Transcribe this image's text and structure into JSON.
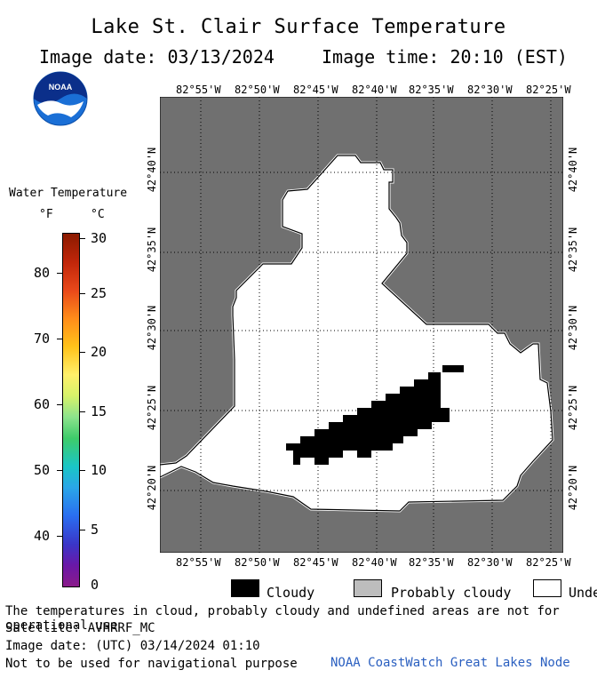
{
  "title": "Lake St. Clair Surface Temperature",
  "image_date_line": "Image date: 03/13/2024",
  "image_time_line": "Image time: 20:10 (EST)",
  "logo_text": "NOAA",
  "colorbar": {
    "label": "Water Temperature",
    "unit_f": "°F",
    "unit_c": "°C",
    "ticks_f": [
      "80",
      "70",
      "60",
      "50",
      "40"
    ],
    "ticks_c": [
      "30",
      "25",
      "20",
      "15",
      "10",
      "5",
      "0"
    ]
  },
  "map": {
    "longitudes": [
      "82°55'W",
      "82°50'W",
      "82°45'W",
      "82°40'W",
      "82°35'W",
      "82°30'W",
      "82°25'W"
    ],
    "latitudes": [
      "42°40'N",
      "42°35'N",
      "42°30'N",
      "42°25'N",
      "42°20'N"
    ],
    "colors": {
      "land": "#707070",
      "water_undefined": "#ffffff",
      "cloud": "#000000",
      "grid": "#000000"
    }
  },
  "legend": {
    "cloudy": "Cloudy",
    "probably_cloudy": "Probably cloudy",
    "undefined": "Undefined"
  },
  "footer": {
    "note": "The temperatures in cloud, probably cloudy and undefined areas are not for operational use",
    "satellite": "Satellite: AVHRRF_MC",
    "utc_date": "Image date: (UTC) 03/14/2024  01:10",
    "nav_warning": "Not to be used for navigational purpose",
    "credit": "NOAA CoastWatch Great Lakes Node"
  }
}
